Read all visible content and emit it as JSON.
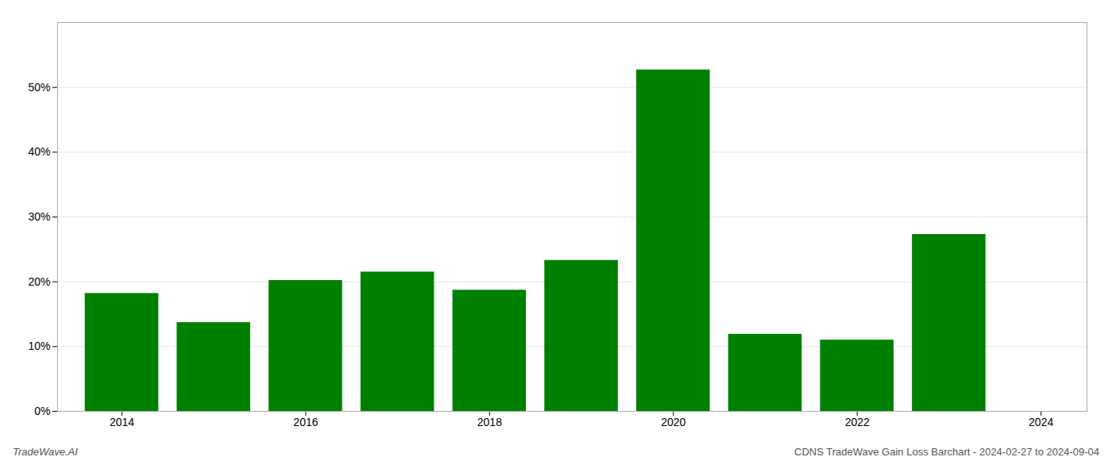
{
  "chart_data": {
    "type": "bar",
    "x": [
      2014,
      2015,
      2016,
      2017,
      2018,
      2019,
      2020,
      2021,
      2022,
      2023
    ],
    "values": [
      18.2,
      13.7,
      20.2,
      21.5,
      18.7,
      23.3,
      52.7,
      11.9,
      11.0,
      27.3
    ],
    "color": "#008000",
    "xlim": [
      2013.3,
      2024.5
    ],
    "xticks": [
      2014,
      2016,
      2018,
      2020,
      2022,
      2024
    ],
    "ylim": [
      0,
      60
    ],
    "yticks": [
      {
        "value": 0,
        "label": "0%"
      },
      {
        "value": 10,
        "label": "10%"
      },
      {
        "value": 20,
        "label": "20%"
      },
      {
        "value": 30,
        "label": "30%"
      },
      {
        "value": 40,
        "label": "40%"
      },
      {
        "value": 50,
        "label": "50%"
      }
    ],
    "grid": true,
    "annotations": [
      "TradeWave.AI",
      "CDNS TradeWave Gain Loss Barchart - 2024-02-27 to 2024-09-04"
    ]
  }
}
